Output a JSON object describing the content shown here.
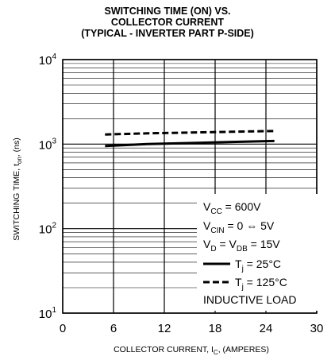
{
  "chart_data": {
    "type": "line",
    "title_lines": [
      "SWITCHING TIME (ON) VS.",
      "COLLECTOR CURRENT",
      "(TYPICAL - INVERTER PART P-SIDE)"
    ],
    "xlabel": {
      "main": "COLLECTOR CURRENT, I",
      "sub": "C",
      "after": ", (AMPERES)"
    },
    "ylabel": {
      "main": "SWITCHING TIME, t",
      "sub": "on",
      "after": ", (ns)"
    },
    "xlim": [
      0,
      30
    ],
    "ylim": [
      10,
      10000
    ],
    "y_scale": "log",
    "x_ticks": [
      "0",
      "6",
      "12",
      "18",
      "24",
      "30"
    ],
    "y_ticks": [
      {
        "base": "10",
        "exp": "1"
      },
      {
        "base": "10",
        "exp": "2"
      },
      {
        "base": "10",
        "exp": "3"
      },
      {
        "base": "10",
        "exp": "4"
      }
    ],
    "grid": true,
    "legend_position": "bottom-right",
    "conditions": [
      {
        "pre": "V",
        "sub": "CC",
        "post": " = 600V"
      },
      {
        "pre": "V",
        "sub": "CIN",
        "post": " = 0 ⇔ 5V"
      },
      {
        "pre": "V",
        "sub": "D",
        "mid": " = V",
        "sub2": "DB",
        "post": " = 15V"
      }
    ],
    "series": [
      {
        "name_pre": "T",
        "name_sub": "j",
        "name_post": " = 25°C",
        "style": "solid",
        "x": [
          5,
          10,
          15,
          20,
          25
        ],
        "y": [
          950,
          1000,
          1030,
          1060,
          1090
        ]
      },
      {
        "name_pre": "T",
        "name_sub": "j",
        "name_post": " = 125°C",
        "style": "dashed",
        "x": [
          5,
          10,
          15,
          20,
          25
        ],
        "y": [
          1300,
          1340,
          1370,
          1400,
          1430
        ]
      }
    ],
    "note": "INDUCTIVE LOAD"
  }
}
